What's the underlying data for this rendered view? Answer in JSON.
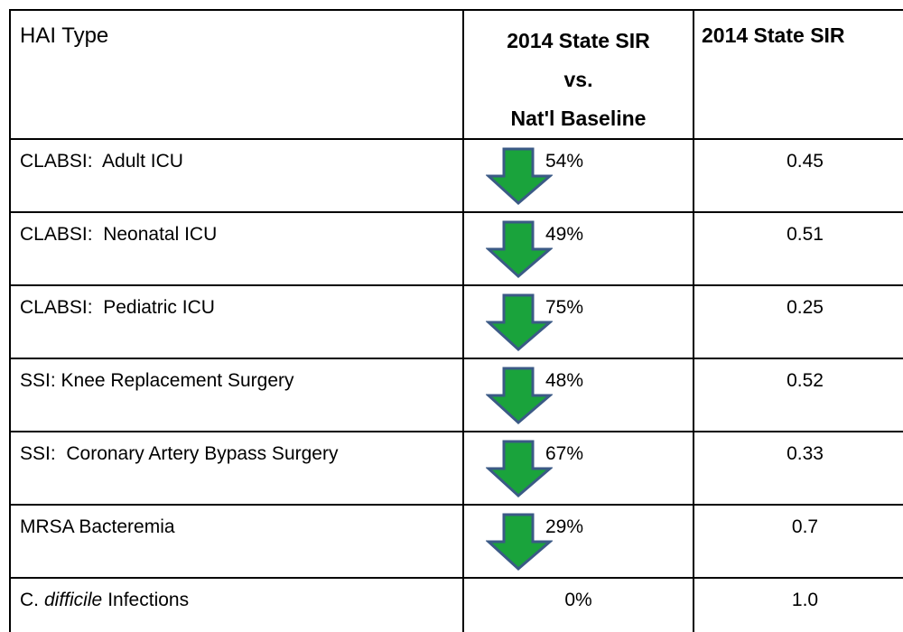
{
  "table": {
    "header": {
      "name": "HAI Type",
      "change": [
        "2014 State SIR",
        "vs.",
        "Nat'l Baseline"
      ],
      "sir": "2014 State SIR"
    },
    "rows": [
      {
        "name": "CLABSI:  Adult ICU",
        "trend": "down",
        "change": "54%",
        "sir": "0.45"
      },
      {
        "name": "CLABSI:  Neonatal ICU",
        "trend": "down",
        "change": "49%",
        "sir": "0.51"
      },
      {
        "name": "CLABSI:  Pediatric ICU",
        "trend": "down",
        "change": "75%",
        "sir": "0.25"
      },
      {
        "name": "SSI: Knee Replacement Surgery",
        "trend": "down",
        "change": "48%",
        "sir": "0.52"
      },
      {
        "name": "SSI:  Coronary Artery Bypass Surgery",
        "trend": "down",
        "change": "67%",
        "sir": "0.33"
      },
      {
        "name": "MRSA Bacteremia",
        "trend": "down",
        "change": "29%",
        "sir": "0.7"
      },
      {
        "name": {
          "prefix": "C.",
          "italic": "difficile",
          "suffix": "Infections"
        },
        "change": "0%",
        "sir": "1.0"
      }
    ]
  }
}
